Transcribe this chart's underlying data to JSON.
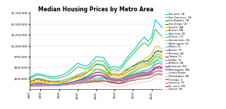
{
  "title": "Median Housing Prices by Metro Area",
  "years": [
    1987,
    1988,
    1989,
    1990,
    1991,
    1992,
    1993,
    1994,
    1995,
    1996,
    1997,
    1998,
    1999,
    2000,
    2001,
    2002,
    2003,
    2004,
    2005,
    2006,
    2007,
    2008,
    2009,
    2010,
    2011,
    2012,
    2013,
    2014,
    2015,
    2016,
    2017,
    2018,
    2019,
    2020,
    2021,
    2022,
    2023
  ],
  "ylim": [
    0,
    1750000
  ],
  "yticks": [
    250000,
    500000,
    750000,
    1000000,
    1250000,
    1500000,
    1750000
  ],
  "ytick_labels": [
    "$250,000",
    "$500,000",
    "$750,000",
    "$1,000,000",
    "$1,250,000",
    "$1,500,000",
    "$1,750,000"
  ],
  "xticks": [
    1987,
    1990,
    1995,
    2000,
    2005,
    2010,
    2015,
    2020
  ],
  "series": [
    {
      "label": "San Jose, CA",
      "color": "#00BFFF",
      "lw": 0.8,
      "ls": "-",
      "values": [
        280000,
        310000,
        360000,
        350000,
        330000,
        310000,
        290000,
        300000,
        310000,
        330000,
        380000,
        440000,
        520000,
        600000,
        570000,
        530000,
        560000,
        650000,
        750000,
        740000,
        730000,
        600000,
        490000,
        530000,
        490000,
        550000,
        680000,
        790000,
        880000,
        990000,
        1100000,
        1200000,
        1100000,
        1200000,
        1600000,
        1500000,
        1400000
      ]
    },
    {
      "label": "San Francisco, CA",
      "color": "#32CD32",
      "lw": 0.8,
      "ls": "-",
      "values": [
        260000,
        290000,
        330000,
        320000,
        295000,
        270000,
        255000,
        260000,
        265000,
        280000,
        320000,
        370000,
        440000,
        520000,
        500000,
        470000,
        500000,
        570000,
        660000,
        650000,
        640000,
        540000,
        440000,
        470000,
        430000,
        500000,
        620000,
        720000,
        810000,
        910000,
        1000000,
        1070000,
        1000000,
        1100000,
        1380000,
        1280000,
        1200000
      ]
    },
    {
      "label": "Los Angeles, CA",
      "color": "#228B22",
      "lw": 0.7,
      "ls": "-",
      "values": [
        185000,
        205000,
        240000,
        235000,
        215000,
        195000,
        180000,
        178000,
        175000,
        178000,
        200000,
        230000,
        270000,
        310000,
        320000,
        360000,
        420000,
        510000,
        580000,
        580000,
        560000,
        460000,
        360000,
        370000,
        340000,
        370000,
        430000,
        490000,
        540000,
        590000,
        640000,
        650000,
        660000,
        730000,
        850000,
        880000,
        860000
      ]
    },
    {
      "label": "San Diego, CA",
      "color": "#006400",
      "lw": 0.7,
      "ls": "--",
      "values": [
        170000,
        188000,
        220000,
        215000,
        195000,
        178000,
        165000,
        162000,
        160000,
        162000,
        182000,
        210000,
        248000,
        285000,
        305000,
        350000,
        415000,
        500000,
        565000,
        570000,
        540000,
        430000,
        330000,
        340000,
        315000,
        355000,
        420000,
        480000,
        530000,
        570000,
        610000,
        630000,
        650000,
        730000,
        860000,
        890000,
        840000
      ]
    },
    {
      "label": "Seattle, WA",
      "color": "#FFA500",
      "lw": 0.7,
      "ls": "-",
      "values": [
        130000,
        148000,
        165000,
        170000,
        160000,
        155000,
        150000,
        155000,
        162000,
        170000,
        190000,
        215000,
        240000,
        260000,
        275000,
        290000,
        315000,
        355000,
        390000,
        410000,
        410000,
        360000,
        295000,
        290000,
        275000,
        305000,
        365000,
        420000,
        480000,
        555000,
        630000,
        700000,
        730000,
        820000,
        980000,
        980000,
        900000
      ]
    },
    {
      "label": "Boston, MA",
      "color": "#FF8C00",
      "lw": 0.7,
      "ls": "-",
      "values": [
        185000,
        205000,
        235000,
        225000,
        205000,
        190000,
        180000,
        185000,
        195000,
        210000,
        235000,
        265000,
        295000,
        330000,
        355000,
        385000,
        415000,
        450000,
        465000,
        455000,
        435000,
        375000,
        325000,
        335000,
        315000,
        340000,
        380000,
        420000,
        460000,
        500000,
        540000,
        570000,
        590000,
        660000,
        780000,
        800000,
        760000
      ]
    },
    {
      "label": "New York, NY",
      "color": "#87CEEB",
      "lw": 0.7,
      "ls": "-",
      "values": [
        215000,
        240000,
        265000,
        255000,
        230000,
        210000,
        195000,
        195000,
        200000,
        210000,
        230000,
        260000,
        295000,
        340000,
        375000,
        420000,
        460000,
        510000,
        560000,
        570000,
        555000,
        490000,
        420000,
        420000,
        395000,
        415000,
        460000,
        490000,
        520000,
        550000,
        580000,
        600000,
        610000,
        680000,
        770000,
        830000,
        820000
      ]
    },
    {
      "label": "Denver, CO",
      "color": "#00CED1",
      "lw": 0.7,
      "ls": "-",
      "values": [
        90000,
        95000,
        100000,
        105000,
        108000,
        110000,
        112000,
        118000,
        125000,
        135000,
        148000,
        165000,
        183000,
        198000,
        210000,
        220000,
        230000,
        245000,
        258000,
        265000,
        270000,
        255000,
        235000,
        240000,
        235000,
        255000,
        295000,
        345000,
        390000,
        440000,
        490000,
        520000,
        545000,
        580000,
        660000,
        660000,
        620000
      ]
    },
    {
      "label": "Sacramento, CA",
      "color": "#9ACD32",
      "lw": 0.7,
      "ls": "-",
      "values": [
        115000,
        130000,
        155000,
        150000,
        135000,
        122000,
        112000,
        110000,
        110000,
        115000,
        130000,
        152000,
        180000,
        210000,
        230000,
        268000,
        318000,
        390000,
        450000,
        450000,
        420000,
        330000,
        245000,
        250000,
        228000,
        262000,
        320000,
        370000,
        415000,
        455000,
        495000,
        520000,
        545000,
        620000,
        750000,
        760000,
        720000
      ]
    },
    {
      "label": "Washington, DC",
      "color": "#FFD700",
      "lw": 0.7,
      "ls": "-",
      "values": [
        155000,
        175000,
        200000,
        195000,
        178000,
        162000,
        152000,
        155000,
        162000,
        173000,
        195000,
        222000,
        252000,
        288000,
        320000,
        368000,
        420000,
        490000,
        545000,
        548000,
        530000,
        455000,
        375000,
        368000,
        340000,
        368000,
        415000,
        450000,
        480000,
        510000,
        545000,
        565000,
        570000,
        630000,
        720000,
        740000,
        720000
      ]
    },
    {
      "label": "Miami, FL",
      "color": "#00FA9A",
      "lw": 0.7,
      "ls": "-",
      "values": [
        95000,
        105000,
        118000,
        115000,
        108000,
        100000,
        95000,
        98000,
        105000,
        112000,
        128000,
        148000,
        172000,
        205000,
        235000,
        278000,
        328000,
        395000,
        460000,
        462000,
        432000,
        340000,
        248000,
        240000,
        215000,
        242000,
        290000,
        330000,
        365000,
        390000,
        420000,
        440000,
        450000,
        490000,
        580000,
        610000,
        590000
      ]
    },
    {
      "label": "Austin, TX",
      "color": "#3CB371",
      "lw": 0.7,
      "ls": "-",
      "values": [
        80000,
        85000,
        90000,
        95000,
        98000,
        100000,
        103000,
        108000,
        115000,
        122000,
        135000,
        148000,
        162000,
        175000,
        185000,
        192000,
        200000,
        212000,
        225000,
        235000,
        242000,
        238000,
        228000,
        232000,
        228000,
        240000,
        262000,
        298000,
        330000,
        362000,
        392000,
        418000,
        440000,
        490000,
        650000,
        720000,
        680000
      ]
    },
    {
      "label": "Phoenix, AZ",
      "color": "#FF69B4",
      "lw": 0.7,
      "ls": "-",
      "values": [
        80000,
        87000,
        95000,
        98000,
        95000,
        90000,
        87000,
        90000,
        95000,
        102000,
        115000,
        130000,
        148000,
        168000,
        185000,
        205000,
        232000,
        272000,
        315000,
        320000,
        295000,
        228000,
        158000,
        148000,
        132000,
        152000,
        195000,
        235000,
        268000,
        295000,
        320000,
        342000,
        362000,
        415000,
        560000,
        600000,
        550000
      ]
    },
    {
      "label": "Tampa, FL",
      "color": "#DC143C",
      "lw": 0.6,
      "ls": "-",
      "values": [
        72000,
        78000,
        85000,
        87000,
        85000,
        82000,
        80000,
        83000,
        88000,
        95000,
        108000,
        122000,
        140000,
        162000,
        178000,
        198000,
        228000,
        272000,
        315000,
        318000,
        295000,
        230000,
        162000,
        155000,
        138000,
        155000,
        195000,
        228000,
        258000,
        285000,
        308000,
        328000,
        342000,
        385000,
        500000,
        540000,
        500000
      ]
    },
    {
      "label": "Dallas, TX",
      "color": "#808080",
      "lw": 0.7,
      "ls": "-",
      "values": [
        80000,
        85000,
        88000,
        90000,
        92000,
        93000,
        95000,
        100000,
        106000,
        112000,
        120000,
        130000,
        140000,
        150000,
        158000,
        163000,
        168000,
        175000,
        183000,
        190000,
        195000,
        192000,
        185000,
        188000,
        185000,
        195000,
        215000,
        248000,
        280000,
        308000,
        332000,
        350000,
        362000,
        395000,
        460000,
        485000,
        460000
      ]
    },
    {
      "label": "Atlanta, GA",
      "color": "#A9A9A9",
      "lw": 0.7,
      "ls": "-",
      "values": [
        78000,
        84000,
        92000,
        95000,
        93000,
        90000,
        88000,
        92000,
        97000,
        105000,
        118000,
        132000,
        148000,
        162000,
        170000,
        178000,
        188000,
        200000,
        212000,
        218000,
        212000,
        185000,
        148000,
        138000,
        122000,
        135000,
        162000,
        192000,
        225000,
        255000,
        280000,
        302000,
        315000,
        348000,
        415000,
        438000,
        418000
      ]
    },
    {
      "label": "Baltimore, MD",
      "color": "#800080",
      "lw": 0.6,
      "ls": "-",
      "values": [
        110000,
        122000,
        140000,
        137000,
        125000,
        115000,
        108000,
        110000,
        115000,
        122000,
        138000,
        158000,
        180000,
        205000,
        230000,
        262000,
        298000,
        345000,
        388000,
        390000,
        370000,
        308000,
        252000,
        248000,
        228000,
        248000,
        280000,
        308000,
        332000,
        352000,
        372000,
        388000,
        395000,
        435000,
        495000,
        512000,
        490000
      ]
    },
    {
      "label": "Minneapolis, MN",
      "color": "#FF1493",
      "lw": 0.6,
      "ls": "-",
      "values": [
        90000,
        98000,
        108000,
        110000,
        108000,
        105000,
        103000,
        108000,
        115000,
        124000,
        138000,
        155000,
        172000,
        195000,
        215000,
        235000,
        260000,
        290000,
        318000,
        322000,
        308000,
        262000,
        215000,
        210000,
        195000,
        212000,
        242000,
        272000,
        302000,
        328000,
        352000,
        368000,
        378000,
        415000,
        470000,
        488000,
        460000
      ]
    },
    {
      "label": "United States",
      "color": "#C0C0C0",
      "lw": 0.8,
      "ls": "--",
      "values": [
        100000,
        108000,
        118000,
        118000,
        112000,
        107000,
        104000,
        107000,
        112000,
        118000,
        130000,
        145000,
        162000,
        180000,
        192000,
        205000,
        220000,
        240000,
        258000,
        262000,
        252000,
        220000,
        185000,
        180000,
        168000,
        180000,
        200000,
        222000,
        245000,
        265000,
        285000,
        302000,
        315000,
        348000,
        408000,
        428000,
        412000
      ]
    },
    {
      "label": "Philadelphia, PA",
      "color": "#DDA0DD",
      "lw": 0.6,
      "ls": "-",
      "values": [
        110000,
        122000,
        138000,
        135000,
        122000,
        112000,
        106000,
        108000,
        113000,
        120000,
        135000,
        152000,
        170000,
        192000,
        215000,
        242000,
        272000,
        308000,
        342000,
        348000,
        332000,
        285000,
        238000,
        235000,
        218000,
        235000,
        262000,
        288000,
        312000,
        332000,
        350000,
        365000,
        372000,
        412000,
        462000,
        480000,
        458000
      ]
    },
    {
      "label": "Chicago, IL",
      "color": "#4169E1",
      "lw": 0.6,
      "ls": "-",
      "values": [
        110000,
        120000,
        132000,
        130000,
        122000,
        115000,
        110000,
        113000,
        118000,
        126000,
        140000,
        158000,
        175000,
        195000,
        218000,
        242000,
        268000,
        298000,
        325000,
        328000,
        312000,
        268000,
        220000,
        215000,
        198000,
        210000,
        232000,
        255000,
        272000,
        290000,
        308000,
        322000,
        328000,
        362000,
        405000,
        422000,
        400000
      ]
    },
    {
      "label": "Houston, TX",
      "color": "#FF6347",
      "lw": 0.6,
      "ls": "-",
      "values": [
        68000,
        72000,
        75000,
        78000,
        80000,
        82000,
        84000,
        88000,
        93000,
        98000,
        108000,
        118000,
        128000,
        138000,
        145000,
        150000,
        155000,
        162000,
        170000,
        178000,
        185000,
        185000,
        182000,
        188000,
        188000,
        198000,
        218000,
        245000,
        268000,
        285000,
        298000,
        308000,
        312000,
        335000,
        362000,
        372000,
        352000
      ]
    },
    {
      "label": "St. Louis, MO",
      "color": "#8B4513",
      "lw": 0.6,
      "ls": "-",
      "values": [
        72000,
        78000,
        83000,
        85000,
        83000,
        80000,
        78000,
        80000,
        84000,
        89000,
        98000,
        108000,
        118000,
        128000,
        138000,
        148000,
        162000,
        178000,
        192000,
        198000,
        195000,
        178000,
        155000,
        152000,
        142000,
        150000,
        168000,
        188000,
        205000,
        220000,
        235000,
        248000,
        255000,
        285000,
        328000,
        342000,
        325000
      ]
    },
    {
      "label": "Detroit, MI",
      "color": "#FFB6C1",
      "lw": 0.6,
      "ls": "-",
      "values": [
        80000,
        87000,
        95000,
        95000,
        88000,
        83000,
        78000,
        80000,
        84000,
        89000,
        98000,
        108000,
        118000,
        128000,
        135000,
        142000,
        148000,
        155000,
        162000,
        158000,
        142000,
        108000,
        70000,
        62000,
        55000,
        65000,
        88000,
        112000,
        132000,
        148000,
        162000,
        172000,
        178000,
        205000,
        248000,
        262000,
        248000
      ]
    }
  ]
}
